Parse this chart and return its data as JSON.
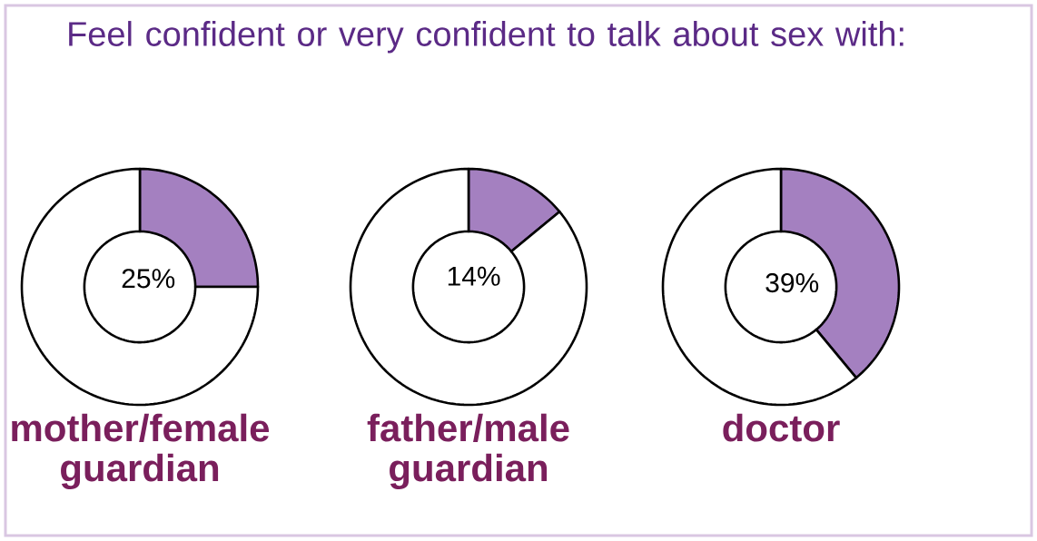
{
  "chart_data": [
    {
      "type": "donut",
      "title": "Feel confident or very confident to talk about sex with:",
      "xlabel": "mother/female guardian",
      "categories": [
        null,
        null
      ],
      "values": [
        25,
        75
      ],
      "colors": [
        "#a480c0",
        "#ffffff"
      ],
      "value_labels": [
        "25%",
        null
      ]
    },
    {
      "type": "donut",
      "xlabel": "father/male guardian",
      "categories": [
        null,
        null
      ],
      "values": [
        14,
        86
      ],
      "colors": [
        "#a480c0",
        "#ffffff"
      ],
      "value_labels": [
        "14%",
        null
      ]
    },
    {
      "type": "donut",
      "xlabel": "doctor",
      "categories": [
        null,
        null
      ],
      "values": [
        39,
        61
      ],
      "colors": [
        "#a480c0",
        "#ffffff"
      ],
      "value_labels": [
        "39%",
        null
      ]
    }
  ]
}
